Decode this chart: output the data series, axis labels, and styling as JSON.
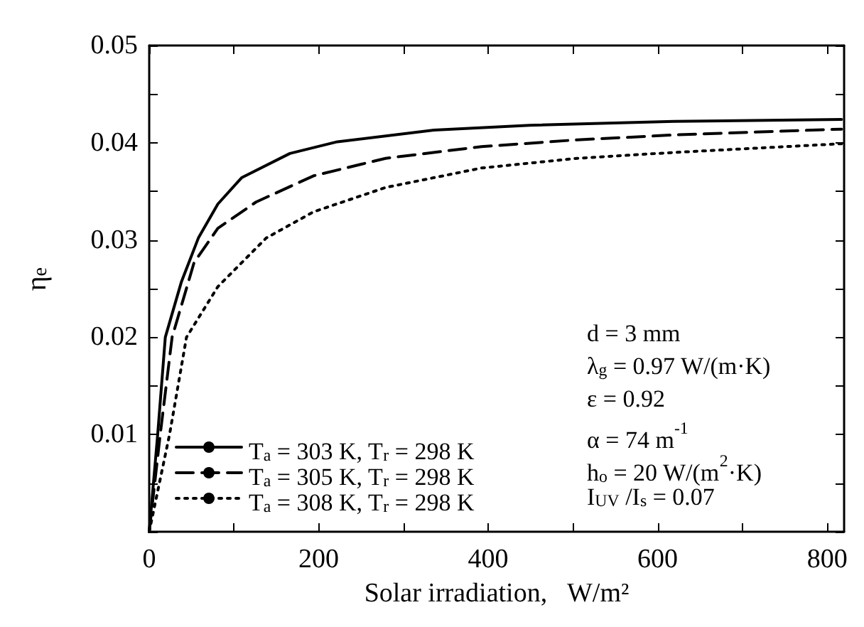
{
  "chart_data": {
    "type": "line",
    "xlabel": "Solar irradiation,   W/m²",
    "ylabel": "η$_{e}$",
    "xlim": [
      0,
      820
    ],
    "ylim": [
      0,
      0.05
    ],
    "xticks": [
      0,
      {
        "value": 100,
        "label": null
      },
      200,
      {
        "value": 300,
        "label": null
      },
      400,
      {
        "value": 500,
        "label": null
      },
      600,
      {
        "value": 700,
        "label": null
      },
      800
    ],
    "yticks": [
      {
        "value": 0,
        "label": null
      },
      {
        "value": 0.005,
        "label": null
      },
      0.01,
      {
        "value": 0.015,
        "label": null
      },
      0.02,
      {
        "value": 0.025,
        "label": null
      },
      0.03,
      {
        "value": 0.035,
        "label": null
      },
      0.04,
      {
        "value": 0.045,
        "label": null
      },
      0.05
    ],
    "grid": false,
    "legend": "bottom left",
    "marker": "none",
    "annotations": [
      "d = 3 mm",
      "λ$_{g}$ = 0.97 W/(m·K)",
      "ε = 0.92",
      "α = 74 m$^{-1}$",
      "h$_{o}$ = 20 W/(m$^{2}$·K)",
      "I$_{UV}$ /I$_{s}$ = 0.07"
    ],
    "series": [
      {
        "name": "T$_{a}$ = 303 K, T$_{r}$ = 298 K",
        "color": "#000000",
        "line_style": "solid",
        "x": [
          0,
          10,
          19,
          38,
          58,
          81,
          109,
          166,
          222,
          336,
          449,
          619,
          817
        ],
        "values": [
          0,
          0.01,
          0.02,
          0.0257,
          0.0302,
          0.0337,
          0.0364,
          0.0389,
          0.0401,
          0.0413,
          0.0418,
          0.0422,
          0.0424
        ]
      },
      {
        "name": "T$_{a}$ = 305 K, T$_{r}$ = 298 K",
        "color": "#000000",
        "line_style": "dashed",
        "x": [
          0,
          13,
          27,
          53,
          81,
          126,
          194,
          279,
          392,
          505,
          619,
          817
        ],
        "values": [
          0,
          0.01,
          0.02,
          0.0277,
          0.0312,
          0.0339,
          0.0366,
          0.0384,
          0.0396,
          0.0403,
          0.0408,
          0.0414
        ]
      },
      {
        "name": "T$_{a}$ = 308 K, T$_{r}$ = 298 K",
        "color": "#000000",
        "line_style": "dotted",
        "x": [
          0,
          24,
          44,
          81,
          138,
          194,
          279,
          392,
          505,
          619,
          817
        ],
        "values": [
          0,
          0.01,
          0.02,
          0.0252,
          0.0302,
          0.0329,
          0.0354,
          0.0374,
          0.0384,
          0.039,
          0.0399
        ]
      }
    ]
  }
}
